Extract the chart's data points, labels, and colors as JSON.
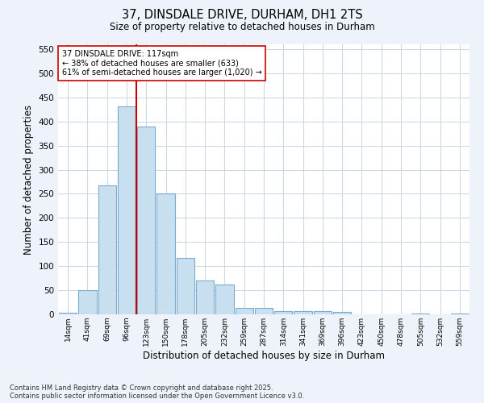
{
  "title1": "37, DINSDALE DRIVE, DURHAM, DH1 2TS",
  "title2": "Size of property relative to detached houses in Durham",
  "xlabel": "Distribution of detached houses by size in Durham",
  "ylabel": "Number of detached properties",
  "bar_labels": [
    "14sqm",
    "41sqm",
    "69sqm",
    "96sqm",
    "123sqm",
    "150sqm",
    "178sqm",
    "205sqm",
    "232sqm",
    "259sqm",
    "287sqm",
    "314sqm",
    "341sqm",
    "369sqm",
    "396sqm",
    "423sqm",
    "450sqm",
    "478sqm",
    "505sqm",
    "532sqm",
    "559sqm"
  ],
  "bar_values": [
    3,
    50,
    267,
    432,
    390,
    250,
    117,
    70,
    62,
    14,
    14,
    7,
    6,
    6,
    5,
    0,
    0,
    0,
    2,
    0,
    2
  ],
  "bar_color": "#c8dff0",
  "bar_edge_color": "#7aabcf",
  "ylim": [
    0,
    560
  ],
  "yticks": [
    0,
    50,
    100,
    150,
    200,
    250,
    300,
    350,
    400,
    450,
    500,
    550
  ],
  "vline_color": "#cc0000",
  "annotation_line1": "37 DINSDALE DRIVE: 117sqm",
  "annotation_line2": "← 38% of detached houses are smaller (633)",
  "annotation_line3": "61% of semi-detached houses are larger (1,020) →",
  "footer1": "Contains HM Land Registry data © Crown copyright and database right 2025.",
  "footer2": "Contains public sector information licensed under the Open Government Licence v3.0.",
  "bg_color": "#eef2fa",
  "plot_bg_color": "#ffffff",
  "grid_color": "#c8d4e8"
}
